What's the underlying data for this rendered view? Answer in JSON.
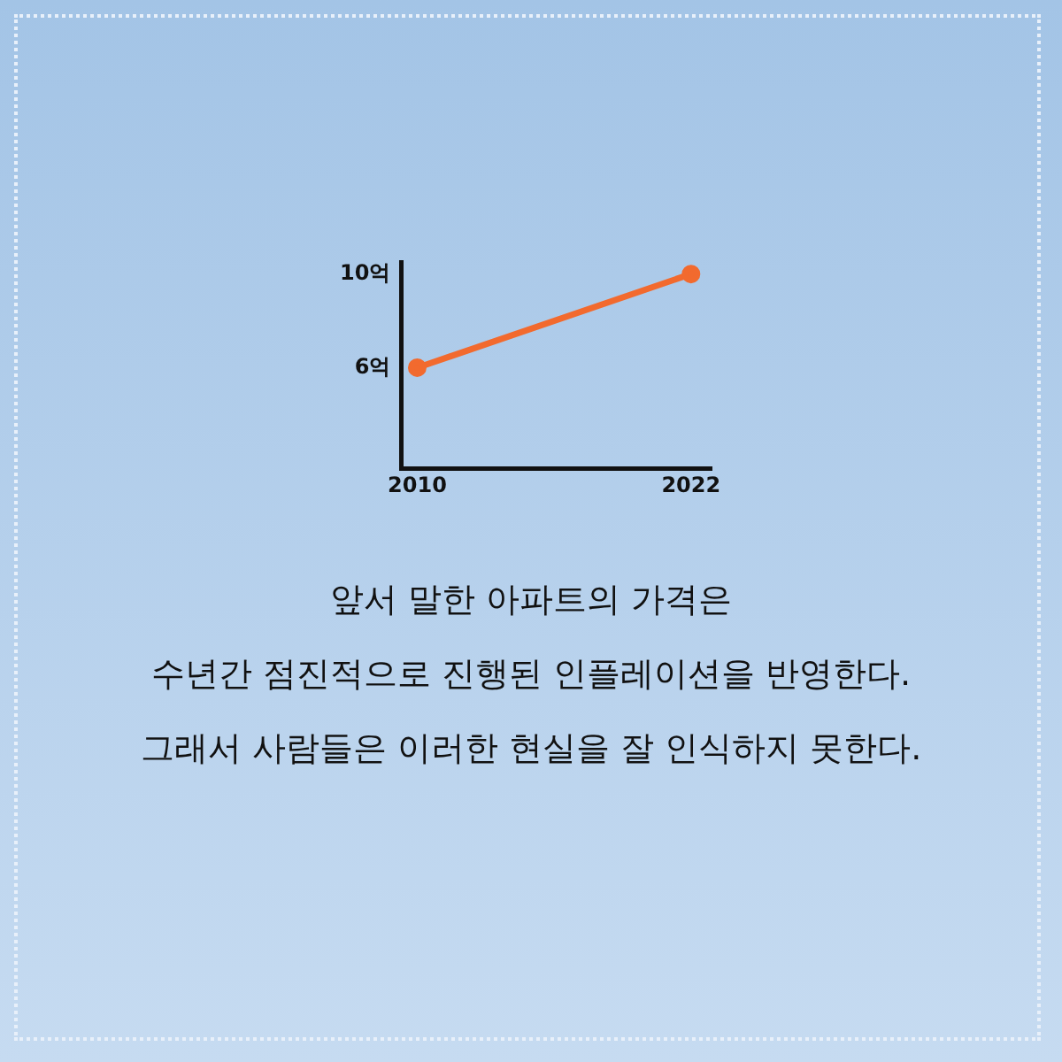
{
  "chart_data": {
    "type": "line",
    "x": [
      2010,
      2022
    ],
    "series": [
      {
        "color": "#f26a2e",
        "values": [
          6,
          10
        ]
      }
    ],
    "xlim": [
      2009.3,
      2022.9
    ],
    "xticks": [
      2010,
      2022
    ],
    "ylim": [
      1.7,
      10.5
    ],
    "yticks": [
      {
        "value": 6,
        "label": "6억"
      },
      {
        "value": 10,
        "label": "10억"
      }
    ],
    "grid": false,
    "legend": false,
    "marker": "circle",
    "line_style": "solid",
    "annotations": [
      "앞서 말한 아파트의 가격은",
      "수년간 점진적으로 진행된 인플레이션을 반영한다.",
      "그래서 사람들은 이러한 현실을 잘 인식하지 못한다."
    ]
  }
}
